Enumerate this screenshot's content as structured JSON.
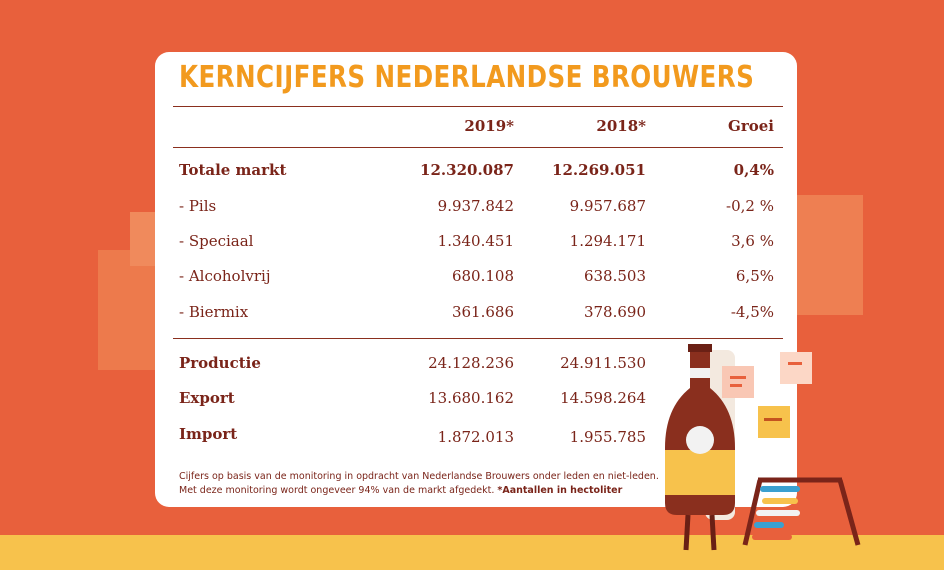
{
  "header": {
    "title": "KERNCIJFERS NEDERLANDSE BROUWERS"
  },
  "table": {
    "columns": [
      "2019*",
      "2018*",
      "Groei"
    ],
    "rows": [
      [
        "Totale markt",
        "12.320.087",
        "12.269.051",
        "0,4%"
      ],
      [
        "- Pils",
        "9.937.842",
        "9.957.687",
        "-0,2 %"
      ],
      [
        "- Speciaal",
        "1.340.451",
        "1.294.171",
        "3,6 %"
      ],
      [
        "- Alcoholvrij",
        "680.108",
        "638.503",
        "6,5%"
      ],
      [
        "- Biermix",
        "361.686",
        "378.690",
        "-4,5%"
      ],
      [
        "Productie",
        "24.128.236",
        "24.911.530"
      ],
      [
        "Export",
        "13.680.162",
        "14.598.264"
      ],
      [
        "Import",
        "1.872.013",
        "1.955.785"
      ]
    ]
  },
  "footnote": {
    "line1": "Cijfers op basis van de monitoring in opdracht van Nederlandse Brouwers onder leden en niet-leden.",
    "line2": "Met deze monitoring wordt ongeveer 94% van de markt afgedekt.",
    "bold": "*Aantallen in hectoliter"
  }
}
